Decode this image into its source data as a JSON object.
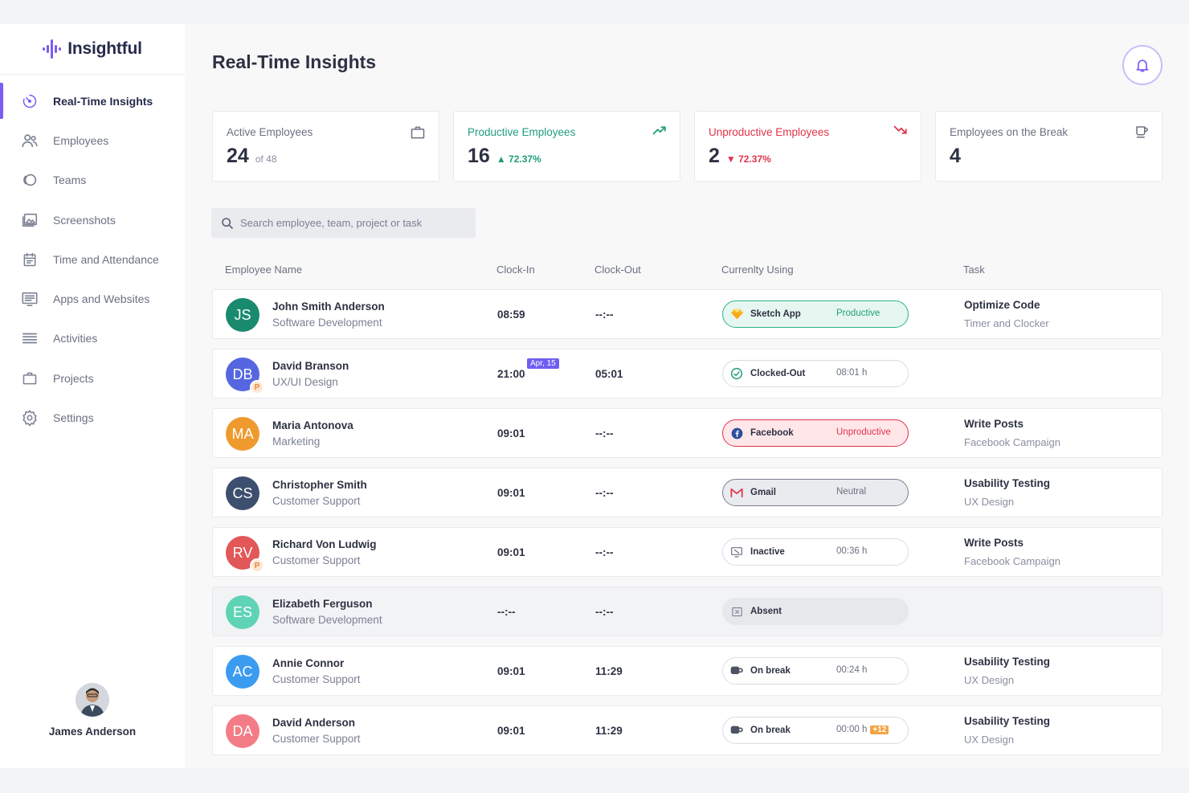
{
  "app": {
    "name": "Insightful",
    "accent": "#7c5cf5"
  },
  "sidebar": {
    "items": [
      {
        "label": "Real-Time Insights",
        "icon": "realtime-icon",
        "active": true
      },
      {
        "label": "Employees",
        "icon": "employees-icon"
      },
      {
        "label": "Teams",
        "icon": "teams-icon"
      },
      {
        "label": "Screenshots",
        "icon": "screenshots-icon"
      },
      {
        "label": "Time and Attendance",
        "icon": "calendar-icon"
      },
      {
        "label": "Apps and Websites",
        "icon": "apps-icon"
      },
      {
        "label": "Activities",
        "icon": "activities-icon"
      },
      {
        "label": "Projects",
        "icon": "briefcase-icon"
      },
      {
        "label": "Settings",
        "icon": "gear-icon"
      }
    ],
    "user": {
      "name": "James Anderson"
    }
  },
  "header": {
    "title": "Real-Time Insights",
    "notification_icon": "bell-icon"
  },
  "stats": [
    {
      "title": "Active Employees",
      "value": "24",
      "sub": "of 48",
      "change": "",
      "icon": "briefcase-icon",
      "tone": "neutral"
    },
    {
      "title": "Productive Employees",
      "value": "16",
      "sub": "",
      "change": "▲ 72.37%",
      "icon": "trend-up-icon",
      "tone": "green"
    },
    {
      "title": "Unproductive Employees",
      "value": "2",
      "sub": "",
      "change": "▼ 72.37%",
      "icon": "trend-down-icon",
      "tone": "red"
    },
    {
      "title": "Employees on the Break",
      "value": "4",
      "sub": "",
      "change": "",
      "icon": "coffee-icon",
      "tone": "neutral"
    }
  ],
  "search": {
    "placeholder": "Search employee, team, project or task"
  },
  "table": {
    "columns": [
      "Employee Name",
      "Clock-In",
      "Clock-Out",
      "Currenlty Using",
      "Task"
    ],
    "rows": [
      {
        "initials": "JS",
        "color": "#1a8a6e",
        "name": "John Smith Anderson",
        "dept": "Software Development",
        "clock_in": "08:59",
        "clock_out": "--:--",
        "date_tag": "",
        "p_badge": false,
        "using": {
          "label": "Sketch App",
          "status": "Productive",
          "type": "productive",
          "icon": "sketch-icon",
          "extra": ""
        },
        "task": "Optimize Code",
        "task_sub": "Timer and Clocker"
      },
      {
        "initials": "DB",
        "color": "#5566e0",
        "name": "David Branson",
        "dept": "UX/UI Design",
        "clock_in": "21:00",
        "clock_out": "05:01",
        "date_tag": "Apr, 15",
        "p_badge": true,
        "using": {
          "label": "Clocked-Out",
          "status": "08:01 h",
          "type": "clocked",
          "icon": "check-circle-icon",
          "extra": ""
        },
        "task": "",
        "task_sub": ""
      },
      {
        "initials": "MA",
        "color": "#ef9a2f",
        "name": "Maria Antonova",
        "dept": "Marketing",
        "clock_in": "09:01",
        "clock_out": "--:--",
        "date_tag": "",
        "p_badge": false,
        "using": {
          "label": "Facebook",
          "status": "Unproductive",
          "type": "unproductive",
          "icon": "facebook-icon",
          "extra": ""
        },
        "task": "Write Posts",
        "task_sub": "Facebook Campaign"
      },
      {
        "initials": "CS",
        "color": "#3d4f6e",
        "name": "Christopher Smith",
        "dept": "Customer Support",
        "clock_in": "09:01",
        "clock_out": "--:--",
        "date_tag": "",
        "p_badge": false,
        "using": {
          "label": "Gmail",
          "status": "Neutral",
          "type": "neutral",
          "icon": "gmail-icon",
          "extra": ""
        },
        "task": "Usability Testing",
        "task_sub": "UX Design"
      },
      {
        "initials": "RV",
        "color": "#e25757",
        "name": "Richard Von Ludwig",
        "dept": "Customer Support",
        "clock_in": "09:01",
        "clock_out": "--:--",
        "date_tag": "",
        "p_badge": true,
        "using": {
          "label": "Inactive",
          "status": "00:36 h",
          "type": "inactive",
          "icon": "inactive-monitor-icon",
          "extra": ""
        },
        "task": "Write Posts",
        "task_sub": "Facebook Campaign"
      },
      {
        "initials": "ES",
        "color": "#5fd3b5",
        "name": "Elizabeth Ferguson",
        "dept": "Software Development",
        "clock_in": "--:--",
        "clock_out": "--:--",
        "date_tag": "",
        "p_badge": false,
        "using": {
          "label": "Absent",
          "status": "",
          "type": "absent",
          "icon": "absent-box-icon",
          "extra": ""
        },
        "task": "",
        "task_sub": ""
      },
      {
        "initials": "AC",
        "color": "#3b9bf0",
        "name": "Annie Connor",
        "dept": "Customer Support",
        "clock_in": "09:01",
        "clock_out": "11:29",
        "date_tag": "",
        "p_badge": false,
        "using": {
          "label": "On break",
          "status": "00:24 h",
          "type": "break",
          "icon": "break-cup-icon",
          "extra": ""
        },
        "task": "Usability Testing",
        "task_sub": "UX Design"
      },
      {
        "initials": "DA",
        "color": "#f37c86",
        "name": "David Anderson",
        "dept": "Customer Support",
        "clock_in": "09:01",
        "clock_out": "11:29",
        "date_tag": "",
        "p_badge": false,
        "using": {
          "label": "On break",
          "status": "00:00 h",
          "type": "break",
          "icon": "break-cup-icon",
          "extra": "+12"
        },
        "task": "Usability Testing",
        "task_sub": "UX Design"
      }
    ]
  }
}
